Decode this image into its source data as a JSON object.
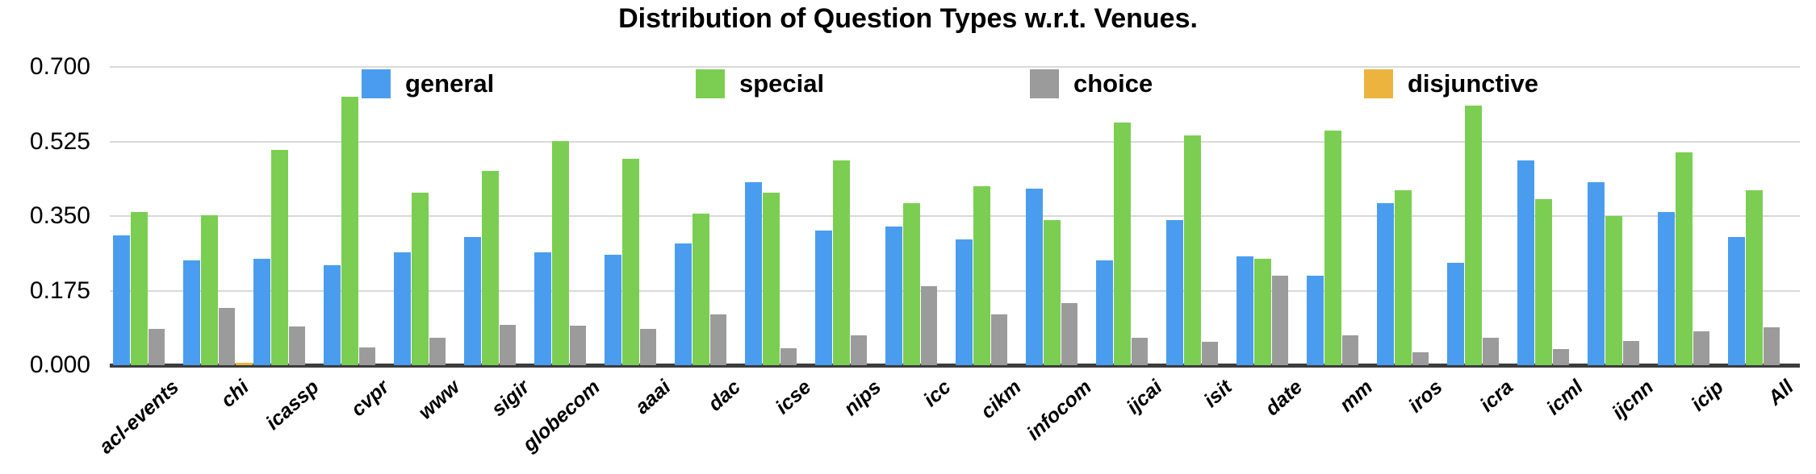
{
  "chart_data": {
    "type": "bar",
    "title": "Distribution of Question Types w.r.t. Venues.",
    "categories": [
      "acl-events",
      "chi",
      "icassp",
      "cvpr",
      "www",
      "sigir",
      "globecom",
      "aaai",
      "dac",
      "icse",
      "nips",
      "icc",
      "cikm",
      "infocom",
      "ijcai",
      "isit",
      "date",
      "mm",
      "iros",
      "icra",
      "icml",
      "ijcnn",
      "icip",
      "All"
    ],
    "series": [
      {
        "name": "general",
        "color": "#4a9dee",
        "values": [
          0.305,
          0.245,
          0.25,
          0.235,
          0.265,
          0.3,
          0.265,
          0.26,
          0.285,
          0.43,
          0.315,
          0.325,
          0.295,
          0.415,
          0.245,
          0.34,
          0.255,
          0.21,
          0.38,
          0.24,
          0.48,
          0.43,
          0.36,
          0.3
        ]
      },
      {
        "name": "special",
        "color": "#7bce52",
        "values": [
          0.36,
          0.352,
          0.505,
          0.63,
          0.405,
          0.455,
          0.525,
          0.485,
          0.355,
          0.405,
          0.48,
          0.38,
          0.42,
          0.34,
          0.57,
          0.54,
          0.25,
          0.55,
          0.41,
          0.61,
          0.39,
          0.35,
          0.5,
          0.41
        ]
      },
      {
        "name": "choice",
        "color": "#9b9b9b",
        "values": [
          0.085,
          0.135,
          0.09,
          0.042,
          0.065,
          0.095,
          0.093,
          0.085,
          0.12,
          0.04,
          0.07,
          0.185,
          0.12,
          0.145,
          0.065,
          0.055,
          0.21,
          0.07,
          0.03,
          0.065,
          0.038,
          0.057,
          0.08,
          0.088
        ]
      },
      {
        "name": "disjunctive",
        "color": "#ecb43f",
        "values": [
          0,
          0.005,
          0,
          0,
          0,
          0,
          0,
          0,
          0,
          0,
          0,
          0,
          0,
          0,
          0,
          0,
          0,
          0,
          0,
          0,
          0,
          0,
          0,
          0
        ]
      }
    ],
    "xlabel": "",
    "ylabel": "",
    "ylim": [
      0,
      0.7
    ],
    "y_ticks": [
      "0.000",
      "0.175",
      "0.350",
      "0.525",
      "0.700"
    ],
    "grid": true,
    "legend_position": "top-inside-horizontal",
    "x_tick_rotation_deg": -42
  }
}
